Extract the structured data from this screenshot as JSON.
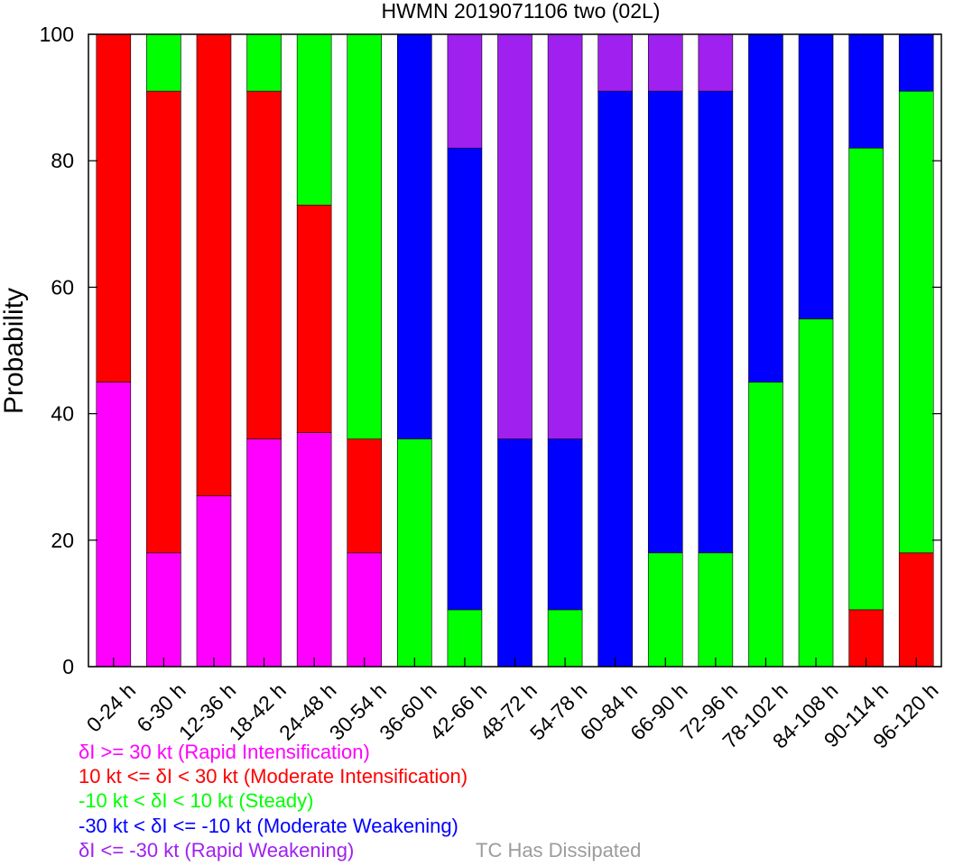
{
  "chart_data": {
    "type": "bar",
    "stacked": true,
    "title": "HWMN 2019071106 two (02L)",
    "ylabel": "Probability",
    "xlabel": "",
    "ylim": [
      0,
      100
    ],
    "yticks": [
      "0",
      "20",
      "40",
      "60",
      "80",
      "100"
    ],
    "grid": false,
    "categories": [
      "0-24 h",
      "6-30 h",
      "12-36 h",
      "18-42 h",
      "24-48 h",
      "30-54 h",
      "36-60 h",
      "42-66 h",
      "48-72 h",
      "54-78 h",
      "60-84 h",
      "66-90 h",
      "72-96 h",
      "78-102 h",
      "84-108 h",
      "90-114 h",
      "96-120 h"
    ],
    "series": [
      {
        "key": "ri",
        "color": "#ff00ff",
        "values": [
          45,
          18,
          27,
          36,
          37,
          18,
          0,
          0,
          0,
          0,
          0,
          0,
          0,
          0,
          0,
          0,
          0
        ]
      },
      {
        "key": "mi",
        "color": "#ff0000",
        "values": [
          55,
          73,
          73,
          55,
          36,
          18,
          0,
          0,
          0,
          0,
          0,
          0,
          0,
          0,
          0,
          9,
          18
        ]
      },
      {
        "key": "st",
        "color": "#00ff00",
        "values": [
          0,
          9,
          0,
          9,
          27,
          64,
          36,
          9,
          0,
          9,
          0,
          18,
          18,
          45,
          55,
          73,
          73
        ]
      },
      {
        "key": "mw",
        "color": "#0000ff",
        "values": [
          0,
          0,
          0,
          0,
          0,
          0,
          64,
          73,
          36,
          27,
          91,
          73,
          73,
          55,
          45,
          18,
          9
        ]
      },
      {
        "key": "rw",
        "color": "#a020f0",
        "values": [
          0,
          0,
          0,
          0,
          0,
          0,
          0,
          18,
          64,
          64,
          9,
          9,
          9,
          0,
          0,
          0,
          0
        ]
      }
    ],
    "legend": {
      "placement": "bottom-left",
      "entries": [
        {
          "text": "δI >= 30 kt (Rapid Intensification)",
          "color": "#ff00ff"
        },
        {
          "text": "10 kt <= δI < 30 kt (Moderate Intensification)",
          "color": "#ff0000"
        },
        {
          "text": "-10 kt < δI < 10 kt (Steady)",
          "color": "#00ff00"
        },
        {
          "text": "-30 kt < δI <= -10 kt (Moderate Weakening)",
          "color": "#0000ff"
        },
        {
          "text": "δI <= -30 kt (Rapid Weakening)",
          "color": "#a020f0"
        }
      ],
      "dissipated": {
        "text": "TC Has Dissipated",
        "color": "#9c9c9c"
      }
    }
  }
}
